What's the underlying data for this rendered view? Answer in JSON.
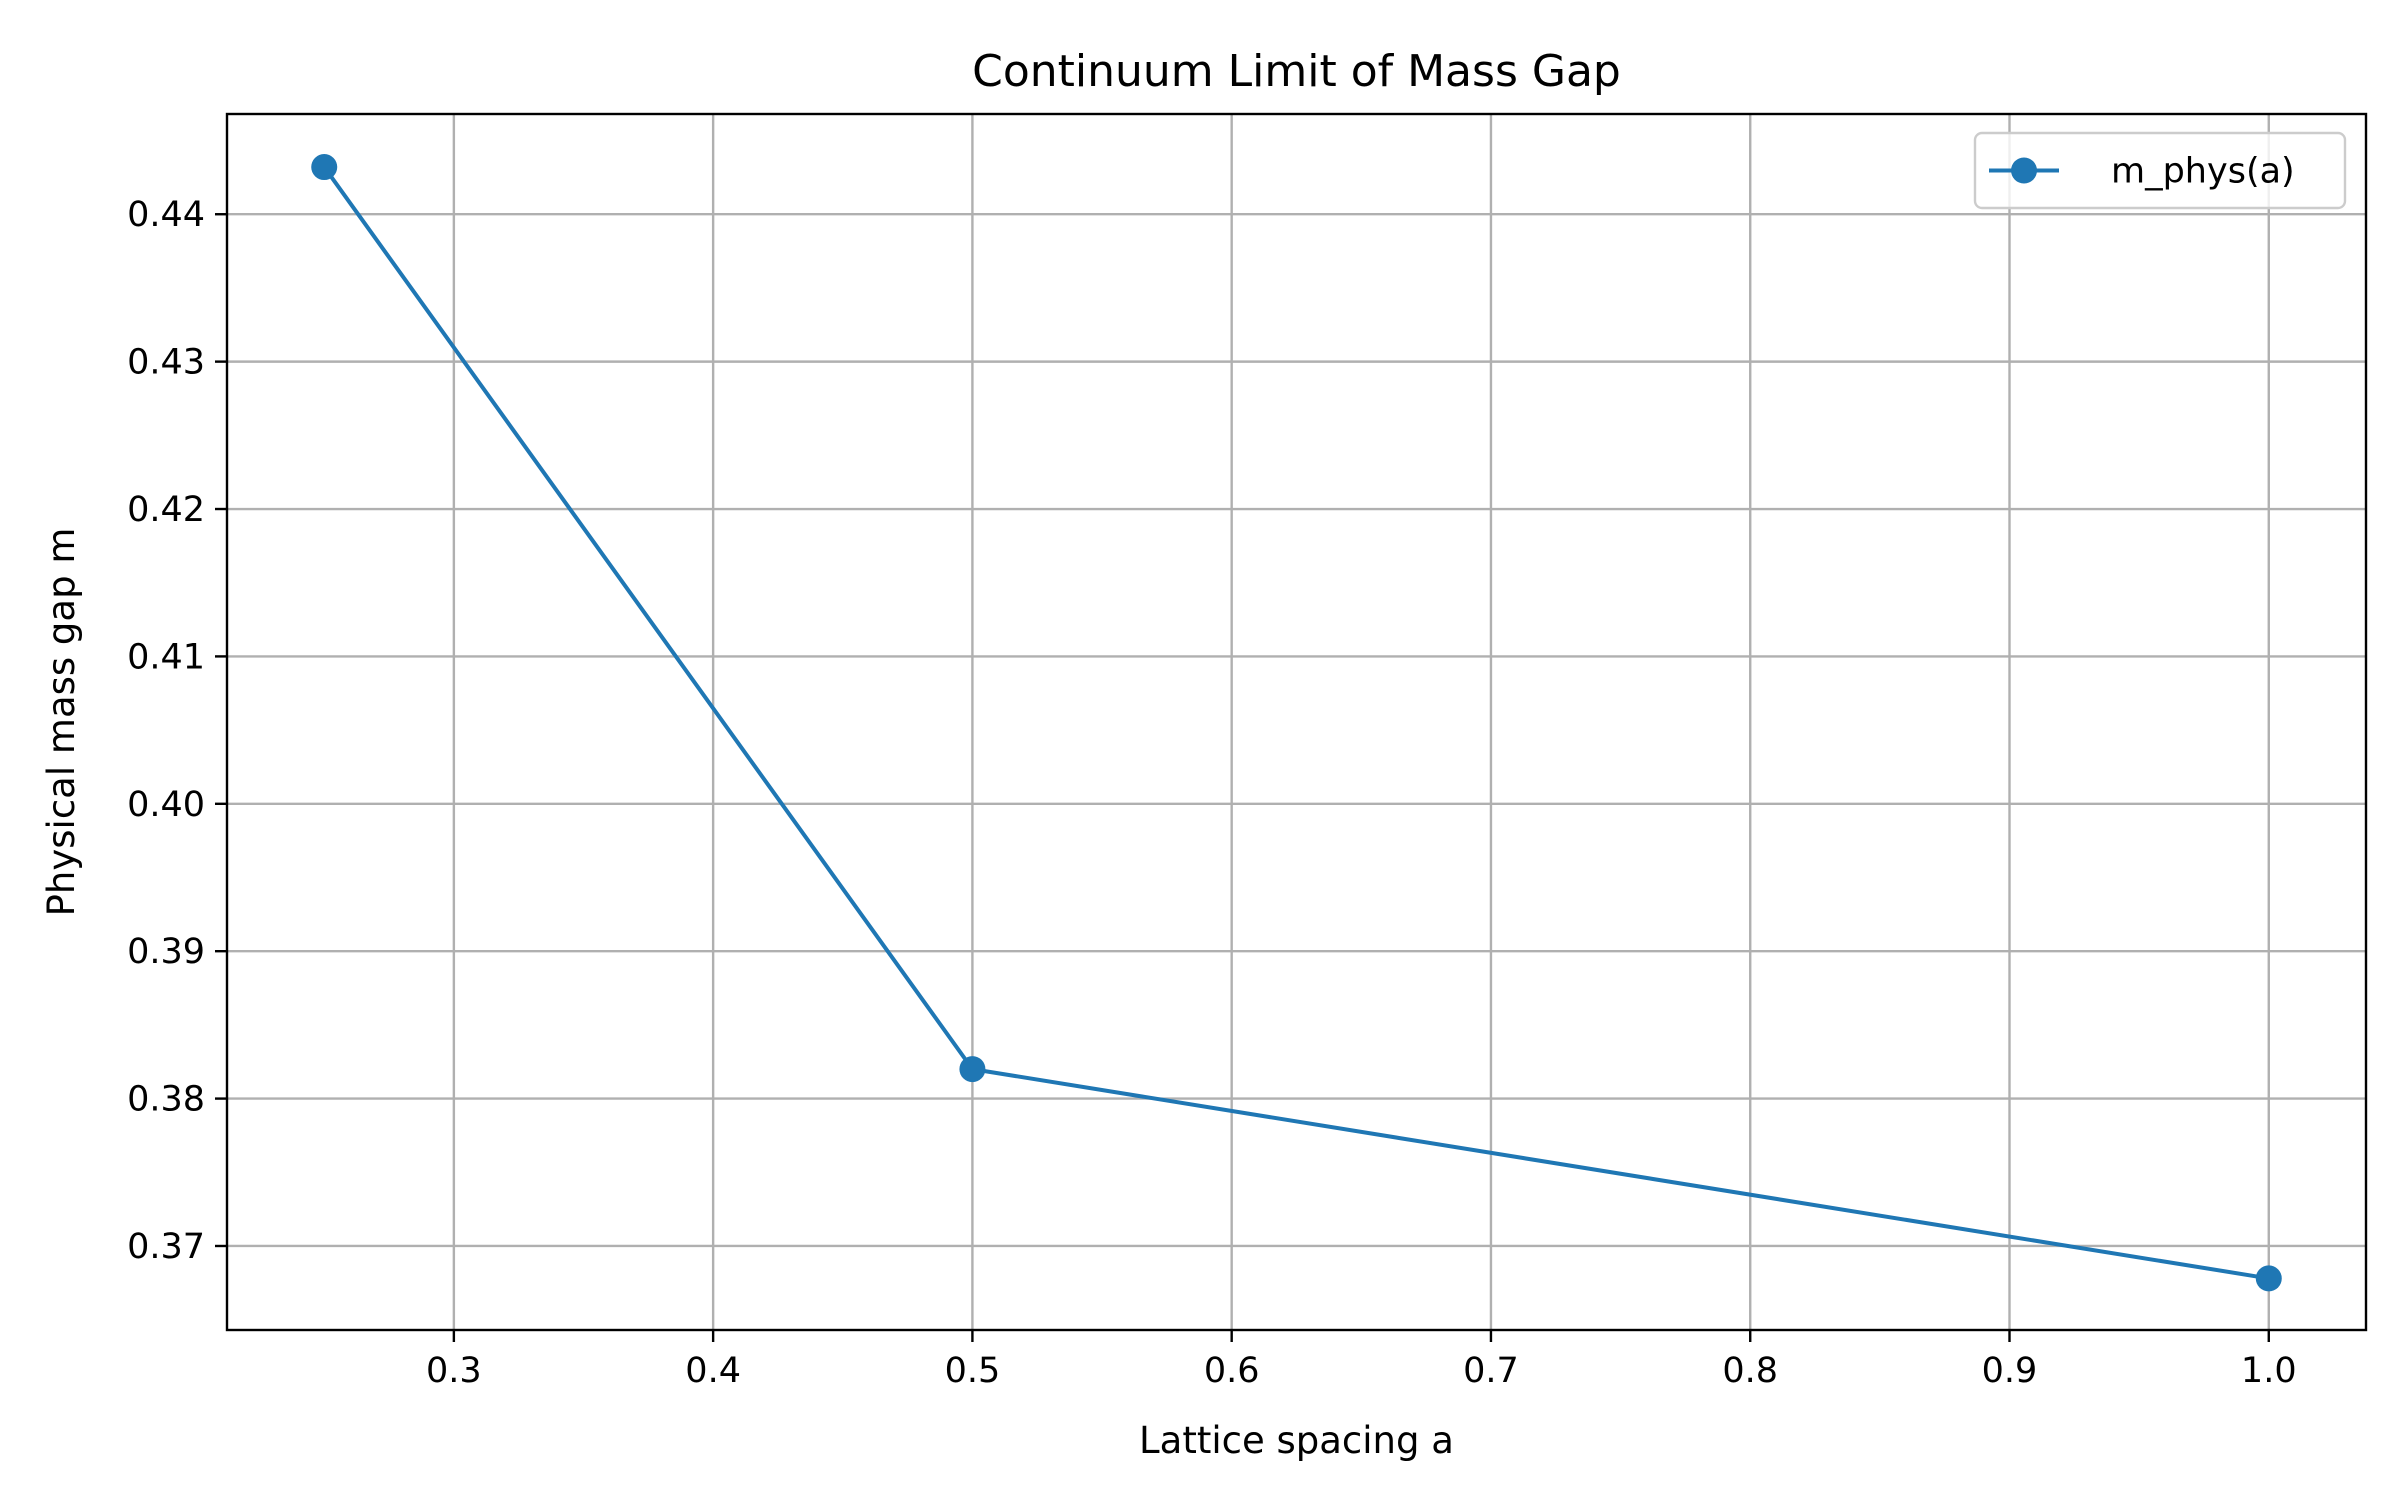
{
  "chart_data": {
    "type": "line",
    "title": "Continuum Limit of Mass Gap",
    "xlabel": "Lattice spacing a",
    "ylabel": "Physical mass gap m",
    "xlim": [
      0.2125,
      1.0375
    ],
    "ylim": [
      0.3643,
      0.4468
    ],
    "xticks": [
      0.3,
      0.4,
      0.5,
      0.6,
      0.7,
      0.8,
      0.9,
      1.0
    ],
    "xtick_labels": [
      "0.3",
      "0.4",
      "0.5",
      "0.6",
      "0.7",
      "0.8",
      "0.9",
      "1.0"
    ],
    "yticks": [
      0.37,
      0.38,
      0.39,
      0.4,
      0.41,
      0.42,
      0.43,
      0.44
    ],
    "ytick_labels": [
      "0.37",
      "0.38",
      "0.39",
      "0.40",
      "0.41",
      "0.42",
      "0.43",
      "0.44"
    ],
    "grid": true,
    "legend_position": "top-right",
    "series": [
      {
        "name": "m_phys(a)",
        "color": "#1f77b4",
        "marker": "circle",
        "x": [
          0.25,
          0.5,
          1.0
        ],
        "y": [
          0.4432,
          0.382,
          0.3678
        ]
      }
    ]
  }
}
